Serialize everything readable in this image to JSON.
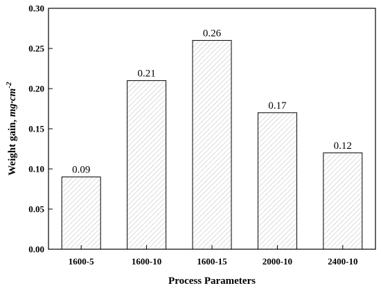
{
  "chart_data": {
    "type": "bar",
    "categories": [
      "1600-5",
      "1600-10",
      "1600-15",
      "2000-10",
      "2400-10"
    ],
    "values": [
      0.09,
      0.21,
      0.26,
      0.17,
      0.12
    ],
    "data_labels": [
      "0.09",
      "0.21",
      "0.26",
      "0.17",
      "0.12"
    ],
    "xlabel": "Process Parameters",
    "ylabel": "Weight gain,",
    "ylabel_unit": "mg·cm",
    "ylabel_unit_exp": "-2",
    "ylim": [
      0,
      0.3
    ],
    "yticks": [
      0.0,
      0.05,
      0.1,
      0.15,
      0.2,
      0.25,
      0.3
    ],
    "ytick_labels": [
      "0.00",
      "0.05",
      "0.10",
      "0.15",
      "0.20",
      "0.25",
      "0.30"
    ],
    "bar_fill": "hatched",
    "bar_color": "#ffffff",
    "hatch_color": "#c8c8c8",
    "grid": false,
    "legend": "none"
  }
}
